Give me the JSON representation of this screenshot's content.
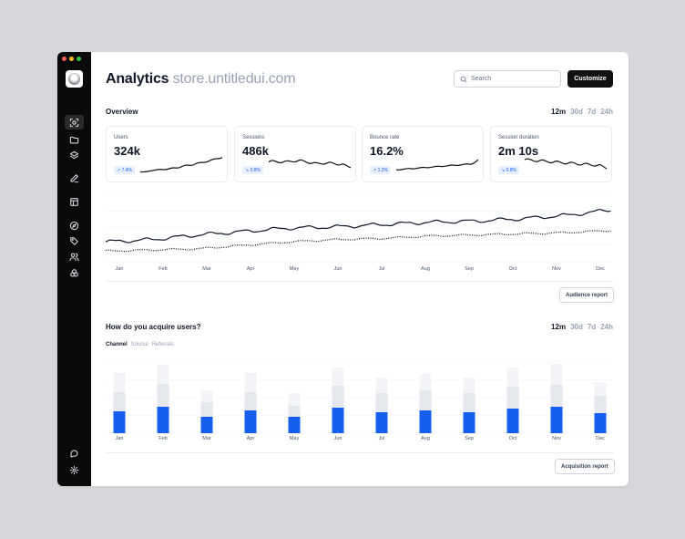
{
  "window": {
    "traffic_colors": [
      "#ff5f57",
      "#febc2e",
      "#28c840"
    ]
  },
  "sidebar": {
    "top_items": [
      {
        "icon": "focus-icon",
        "active": true
      },
      {
        "icon": "folder-icon",
        "active": false
      },
      {
        "icon": "layers-icon",
        "active": false
      },
      {
        "icon": "pen-icon",
        "active": false
      },
      {
        "icon": "layout-icon",
        "active": false
      },
      {
        "icon": "compass-icon",
        "active": false
      },
      {
        "icon": "tag-icon",
        "active": false
      },
      {
        "icon": "users-icon",
        "active": false
      },
      {
        "icon": "shapes-icon",
        "active": false
      }
    ],
    "bottom_items": [
      {
        "icon": "support-icon"
      },
      {
        "icon": "settings-icon"
      }
    ]
  },
  "header": {
    "title": "Analytics",
    "subtitle": "store.untitledui.com",
    "search_placeholder": "Search",
    "customize_label": "Customize"
  },
  "overview": {
    "title": "Overview",
    "ranges": [
      "12m",
      "30d",
      "7d",
      "24h"
    ],
    "active_range": "12m",
    "stats": [
      {
        "label": "Users",
        "value": "324k",
        "change": "7.4%",
        "trend": "up"
      },
      {
        "label": "Sessions",
        "value": "486k",
        "change": "0.8%",
        "trend": "down"
      },
      {
        "label": "Bounce rate",
        "value": "16.2%",
        "change": "1.2%",
        "trend": "up"
      },
      {
        "label": "Session duration",
        "value": "2m 10s",
        "change": "0.8%",
        "trend": "down"
      }
    ],
    "months": [
      "Jan",
      "Feb",
      "Mar",
      "Apr",
      "May",
      "Jun",
      "Jul",
      "Aug",
      "Sep",
      "Oct",
      "Nov",
      "Dec"
    ],
    "audience_button": "Audience report"
  },
  "acquisition": {
    "title": "How do you acquire users?",
    "ranges": [
      "12m",
      "30d",
      "7d",
      "24h"
    ],
    "active_range": "12m",
    "tabs": [
      "Channel",
      "Source",
      "Referrals"
    ],
    "active_tab": "Channel",
    "months": [
      "Jan",
      "Feb",
      "Mar",
      "Apr",
      "May",
      "Jun",
      "Jul",
      "Aug",
      "Sep",
      "Oct",
      "Nov",
      "Dec"
    ],
    "button": "Acquisition report"
  },
  "chart_data": [
    {
      "type": "line",
      "x": [
        "Jan",
        "Feb",
        "Mar",
        "Apr",
        "May",
        "Jun",
        "Jul",
        "Aug",
        "Sep",
        "Oct",
        "Nov",
        "Dec"
      ],
      "series": [
        {
          "values": [
            38,
            40,
            44,
            47,
            50,
            51,
            53,
            55,
            56,
            58,
            61,
            66
          ]
        },
        {
          "values": [
            30,
            31,
            32,
            35,
            38,
            40,
            41,
            43,
            44,
            45,
            46,
            48
          ]
        }
      ],
      "ylim": [
        20,
        80
      ],
      "grid": true,
      "colors": [
        "#101828",
        "#101828"
      ]
    },
    {
      "type": "bar",
      "stacked": true,
      "categories": [
        "Jan",
        "Feb",
        "Mar",
        "Apr",
        "May",
        "Jun",
        "Jul",
        "Aug",
        "Sep",
        "Oct",
        "Nov",
        "Dec"
      ],
      "series": [
        {
          "values": [
            24,
            29,
            18,
            25,
            18,
            28,
            23,
            25,
            23,
            27,
            29,
            22
          ],
          "color": "#155eef"
        },
        {
          "values": [
            21,
            25,
            16,
            20,
            12,
            24,
            21,
            22,
            21,
            24,
            24,
            19
          ],
          "color": "#e4e7ec"
        },
        {
          "values": [
            21,
            21,
            13,
            21,
            14,
            20,
            17,
            18,
            17,
            21,
            23,
            15
          ],
          "color": "#f2f4f7"
        }
      ],
      "ylim": [
        0,
        80
      ],
      "grid": true
    }
  ]
}
